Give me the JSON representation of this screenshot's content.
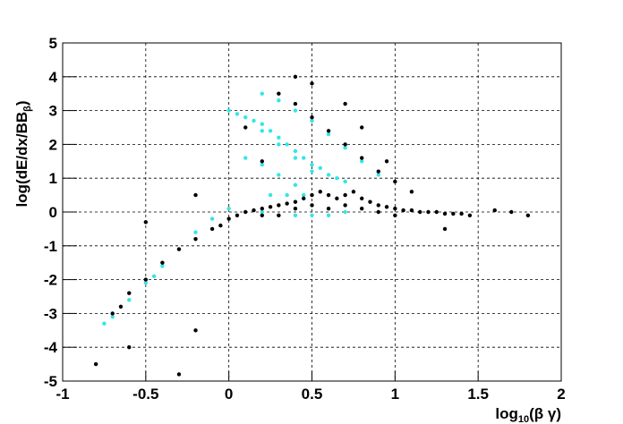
{
  "chart_data": {
    "type": "scatter",
    "x_label": [
      "log",
      "10",
      "(β γ)"
    ],
    "y_label": [
      "log(dE/dx/BB",
      "β",
      ")"
    ],
    "xlim": [
      -1,
      2
    ],
    "ylim": [
      -5,
      5
    ],
    "xticks": [
      -1,
      -0.5,
      0,
      0.5,
      1,
      1.5,
      2
    ],
    "yticks": [
      -5,
      -4,
      -3,
      -2,
      -1,
      0,
      1,
      2,
      3,
      4,
      5
    ],
    "grid": true,
    "series": [
      {
        "color": "#33e6e6",
        "x": [
          0,
          0.05,
          0.1,
          0.15,
          0.2,
          0.25,
          0.3,
          0.35,
          0.4,
          0.45,
          0.5,
          0.55,
          0.6,
          0.65,
          0.7,
          0.2,
          0.3,
          0.4,
          0.5,
          0.2,
          0.3,
          0.4,
          0.5,
          0.6,
          0.7,
          0.8,
          0.9,
          1,
          0.1,
          0.2,
          0.3,
          0.4,
          0.2,
          0.3,
          0.4,
          0.5,
          0.6,
          0.7,
          0.25,
          0.35,
          0.45,
          -0.7,
          -0.6,
          -0.5,
          -0.4,
          -0.3,
          -0.2,
          -0.1,
          0,
          -0.75,
          -0.45
        ],
        "y": [
          3,
          2.9,
          2.8,
          2.7,
          2.6,
          2.4,
          2.2,
          2.0,
          1.8,
          1.6,
          1.4,
          1.3,
          1.1,
          1.0,
          0.9,
          2.4,
          2.0,
          1.6,
          1.2,
          3.5,
          3.3,
          3.0,
          2.7,
          2.3,
          1.9,
          1.5,
          1.1,
          0.9,
          1.6,
          1.4,
          1.1,
          0.8,
          0,
          -0.1,
          -0.1,
          -0.1,
          -0.1,
          0,
          0.5,
          0.5,
          0.5,
          -3.1,
          -2.6,
          -2.1,
          -1.6,
          -1.1,
          -0.6,
          -0.2,
          0.1,
          -3.3,
          -1.9
        ]
      },
      {
        "color": "#000000",
        "x": [
          0,
          0.05,
          0.1,
          0.15,
          0.2,
          0.25,
          0.3,
          0.35,
          0.4,
          0.45,
          0.5,
          0.55,
          0.6,
          0.65,
          0.7,
          0.75,
          0.8,
          0.85,
          0.9,
          0.95,
          1,
          1.05,
          1.1,
          1.15,
          1.2,
          1.25,
          1.3,
          1.35,
          1.4,
          1.45,
          0.5,
          0.6,
          0.7,
          0.8,
          0.9,
          1,
          0.4,
          0.3,
          0.2,
          -0.7,
          -0.65,
          -0.6,
          -0.5,
          -0.4,
          -0.3,
          -0.2,
          -0.1,
          -0.05,
          0.3,
          0.4,
          0.5,
          0.6,
          0.7,
          0.8,
          0.9,
          0.7,
          0.5,
          0.4,
          0.8,
          0.95,
          1,
          1.1,
          -0.8,
          -0.6,
          -0.3,
          -0.2,
          1.7,
          1.8,
          1.6,
          0.2,
          0.1,
          -0.2,
          -0.5,
          1.3
        ],
        "y": [
          -0.2,
          -0.1,
          0,
          0.05,
          0.1,
          0.15,
          0.2,
          0.25,
          0.3,
          0.4,
          0.5,
          0.6,
          0.5,
          0.4,
          0.5,
          0.6,
          0.4,
          0.3,
          0.2,
          0.15,
          0.1,
          0.05,
          0.05,
          0,
          0,
          0,
          -0.05,
          -0.05,
          -0.05,
          -0.1,
          0.2,
          0.1,
          0.2,
          0.1,
          0,
          -0.1,
          0.1,
          -0.1,
          -0.1,
          -3,
          -2.8,
          -2.4,
          -2,
          -1.5,
          -1.1,
          -0.8,
          -0.5,
          -0.4,
          3.5,
          3.2,
          2.8,
          2.4,
          2,
          1.6,
          1.2,
          3.2,
          3.8,
          4,
          2.5,
          1.5,
          0.9,
          0.6,
          -4.5,
          -4,
          -4.8,
          -3.5,
          0,
          -0.1,
          0.05,
          1.5,
          2.5,
          0.5,
          -0.3,
          -0.5
        ]
      }
    ]
  }
}
